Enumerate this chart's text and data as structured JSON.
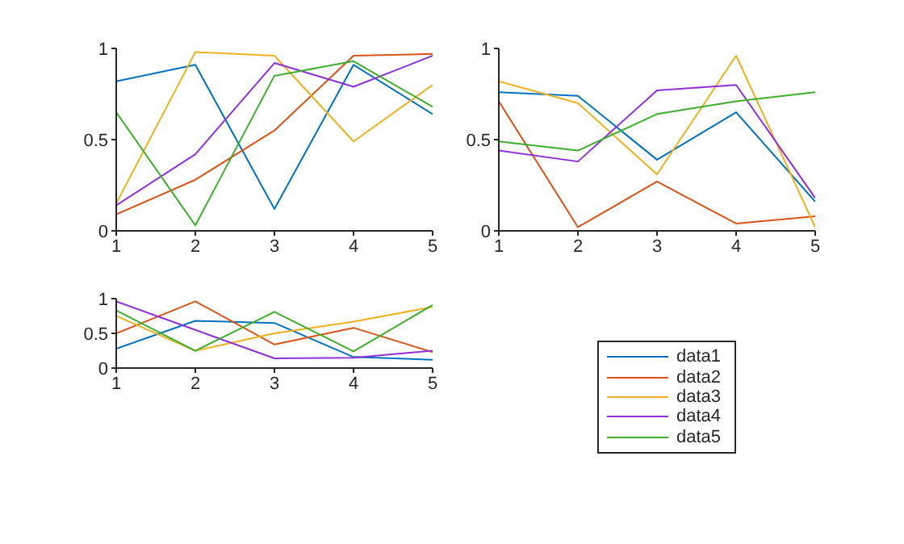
{
  "chart_data": [
    {
      "type": "line",
      "x": [
        1,
        2,
        3,
        4,
        5
      ],
      "xlim": [
        1,
        5
      ],
      "xticks": [
        1,
        2,
        3,
        4,
        5
      ],
      "ylim": [
        0,
        1
      ],
      "yticks": [
        0,
        0.5,
        1
      ],
      "grid": false,
      "marker": "none",
      "line_style": "solid",
      "series": [
        {
          "color": "#0072bd",
          "values": [
            0.82,
            0.91,
            0.12,
            0.91,
            0.64
          ]
        },
        {
          "color": "#d95319",
          "values": [
            0.09,
            0.28,
            0.55,
            0.96,
            0.97
          ]
        },
        {
          "color": "#edb120",
          "values": [
            0.15,
            0.98,
            0.96,
            0.49,
            0.8
          ]
        },
        {
          "color": "#8e2fd8",
          "values": [
            0.14,
            0.42,
            0.92,
            0.79,
            0.96
          ]
        },
        {
          "color": "#3cae2c",
          "values": [
            0.65,
            0.03,
            0.85,
            0.93,
            0.68
          ]
        }
      ]
    },
    {
      "type": "line",
      "x": [
        1,
        2,
        3,
        4,
        5
      ],
      "xlim": [
        1,
        5
      ],
      "xticks": [
        1,
        2,
        3,
        4,
        5
      ],
      "ylim": [
        0,
        1
      ],
      "yticks": [
        0,
        0.5,
        1
      ],
      "grid": false,
      "marker": "none",
      "line_style": "solid",
      "series": [
        {
          "color": "#0072bd",
          "values": [
            0.76,
            0.74,
            0.39,
            0.65,
            0.16
          ]
        },
        {
          "color": "#d95319",
          "values": [
            0.71,
            0.02,
            0.27,
            0.04,
            0.08
          ]
        },
        {
          "color": "#edb120",
          "values": [
            0.82,
            0.7,
            0.31,
            0.96,
            0.02
          ]
        },
        {
          "color": "#8e2fd8",
          "values": [
            0.44,
            0.38,
            0.77,
            0.8,
            0.18
          ]
        },
        {
          "color": "#3cae2c",
          "values": [
            0.49,
            0.44,
            0.64,
            0.71,
            0.76
          ]
        }
      ]
    },
    {
      "type": "line",
      "x": [
        1,
        2,
        3,
        4,
        5
      ],
      "xlim": [
        1,
        5
      ],
      "xticks": [
        1,
        2,
        3,
        4,
        5
      ],
      "ylim": [
        0,
        1
      ],
      "yticks": [
        0,
        0.5,
        1
      ],
      "grid": false,
      "marker": "none",
      "line_style": "solid",
      "legend": "right",
      "series": [
        {
          "name": "data1",
          "color": "#0072bd",
          "values": [
            0.28,
            0.68,
            0.65,
            0.16,
            0.12
          ]
        },
        {
          "name": "data2",
          "color": "#d95319",
          "values": [
            0.5,
            0.96,
            0.34,
            0.58,
            0.23
          ]
        },
        {
          "name": "data3",
          "color": "#edb120",
          "values": [
            0.75,
            0.25,
            0.5,
            0.67,
            0.88
          ]
        },
        {
          "name": "data4",
          "color": "#8e2fd8",
          "values": [
            0.96,
            0.55,
            0.14,
            0.15,
            0.25
          ]
        },
        {
          "name": "data5",
          "color": "#3cae2c",
          "values": [
            0.83,
            0.25,
            0.81,
            0.24,
            0.91
          ]
        }
      ]
    }
  ]
}
